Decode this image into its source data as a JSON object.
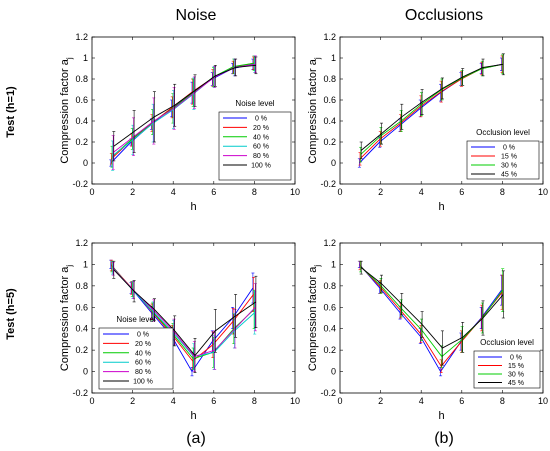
{
  "headers": {
    "col_a": "Noise",
    "col_b": "Occlusions",
    "row_1": "Test (h=1)",
    "row_2": "Test (h=5)",
    "sub_a": "(a)",
    "sub_b": "(b)"
  },
  "chart_data": [
    {
      "type": "line",
      "xlabel": "h",
      "ylabel": "Compression factor a",
      "ylabel_sub": "j",
      "xlim": [
        0,
        10
      ],
      "ylim": [
        -0.2,
        1.2
      ],
      "xticks": [
        0,
        2,
        4,
        6,
        8,
        10
      ],
      "yticks": [
        -0.2,
        0,
        0.2,
        0.4,
        0.6,
        0.8,
        1,
        1.2
      ],
      "legend_title": "Noise level",
      "legend_position": "lower-right",
      "x": [
        1,
        2,
        3,
        4,
        5,
        6,
        7,
        8
      ],
      "series": [
        {
          "name": "0 %",
          "color": "#0000ff",
          "values": [
            0.0,
            0.2,
            0.37,
            0.52,
            0.67,
            0.8,
            0.9,
            0.94
          ],
          "err": [
            0.03,
            0.03,
            0.05,
            0.08,
            0.1,
            0.06,
            0.05,
            0.05
          ]
        },
        {
          "name": "20 %",
          "color": "#ff0000",
          "values": [
            0.04,
            0.22,
            0.38,
            0.53,
            0.68,
            0.81,
            0.91,
            0.95
          ],
          "err": [
            0.05,
            0.06,
            0.08,
            0.1,
            0.12,
            0.08,
            0.06,
            0.06
          ]
        },
        {
          "name": "40 %",
          "color": "#00cc00",
          "values": [
            0.06,
            0.23,
            0.39,
            0.52,
            0.67,
            0.82,
            0.92,
            0.95
          ],
          "err": [
            0.1,
            0.1,
            0.12,
            0.14,
            0.13,
            0.09,
            0.07,
            0.07
          ]
        },
        {
          "name": "60 %",
          "color": "#00cccc",
          "values": [
            0.07,
            0.22,
            0.38,
            0.51,
            0.66,
            0.82,
            0.91,
            0.94
          ],
          "err": [
            0.14,
            0.14,
            0.18,
            0.18,
            0.15,
            0.1,
            0.08,
            0.08
          ]
        },
        {
          "name": "80 %",
          "color": "#cc00cc",
          "values": [
            0.1,
            0.25,
            0.4,
            0.52,
            0.67,
            0.82,
            0.91,
            0.94
          ],
          "err": [
            0.16,
            0.18,
            0.22,
            0.2,
            0.15,
            0.1,
            0.08,
            0.08
          ]
        },
        {
          "name": "100 %",
          "color": "#000000",
          "values": [
            0.16,
            0.3,
            0.44,
            0.55,
            0.69,
            0.83,
            0.91,
            0.93
          ],
          "err": [
            0.14,
            0.2,
            0.24,
            0.2,
            0.15,
            0.1,
            0.08,
            0.08
          ]
        }
      ]
    },
    {
      "type": "line",
      "xlabel": "h",
      "ylabel": "Compression factor a",
      "ylabel_sub": "j",
      "xlim": [
        0,
        10
      ],
      "ylim": [
        -0.2,
        1.2
      ],
      "xticks": [
        0,
        2,
        4,
        6,
        8,
        10
      ],
      "yticks": [
        -0.2,
        0,
        0.2,
        0.4,
        0.6,
        0.8,
        1,
        1.2
      ],
      "legend_title": "Occlusion level",
      "legend_position": "lower-right",
      "x": [
        1,
        2,
        3,
        4,
        5,
        6,
        7,
        8
      ],
      "series": [
        {
          "name": "0 %",
          "color": "#0000ff",
          "values": [
            0.0,
            0.2,
            0.36,
            0.52,
            0.67,
            0.8,
            0.9,
            0.94
          ],
          "err": [
            0.04,
            0.05,
            0.06,
            0.08,
            0.08,
            0.06,
            0.05,
            0.06
          ]
        },
        {
          "name": "15 %",
          "color": "#ff0000",
          "values": [
            0.04,
            0.23,
            0.38,
            0.54,
            0.68,
            0.8,
            0.9,
            0.94
          ],
          "err": [
            0.06,
            0.07,
            0.08,
            0.1,
            0.1,
            0.07,
            0.06,
            0.08
          ]
        },
        {
          "name": "30 %",
          "color": "#00cc00",
          "values": [
            0.08,
            0.26,
            0.4,
            0.56,
            0.7,
            0.81,
            0.9,
            0.94
          ],
          "err": [
            0.07,
            0.08,
            0.1,
            0.11,
            0.1,
            0.07,
            0.07,
            0.09
          ]
        },
        {
          "name": "45 %",
          "color": "#000000",
          "values": [
            0.12,
            0.28,
            0.44,
            0.58,
            0.71,
            0.82,
            0.91,
            0.94
          ],
          "err": [
            0.08,
            0.1,
            0.12,
            0.12,
            0.1,
            0.08,
            0.08,
            0.1
          ]
        }
      ]
    },
    {
      "type": "line",
      "xlabel": "h",
      "ylabel": "Compression factor a",
      "ylabel_sub": "j",
      "xlim": [
        0,
        10
      ],
      "ylim": [
        -0.2,
        1.2
      ],
      "xticks": [
        0,
        2,
        4,
        6,
        8,
        10
      ],
      "yticks": [
        -0.2,
        0,
        0.2,
        0.4,
        0.6,
        0.8,
        1,
        1.2
      ],
      "legend_title": "Noise level",
      "legend_position": "lower-left",
      "x": [
        1,
        2,
        3,
        4,
        5,
        6,
        7,
        8
      ],
      "series": [
        {
          "name": "0 %",
          "color": "#0000ff",
          "values": [
            1.0,
            0.78,
            0.55,
            0.33,
            0.0,
            0.28,
            0.5,
            0.78
          ],
          "err": [
            0.04,
            0.05,
            0.06,
            0.08,
            0.04,
            0.1,
            0.1,
            0.14
          ]
        },
        {
          "name": "20 %",
          "color": "#ff0000",
          "values": [
            0.99,
            0.78,
            0.56,
            0.34,
            0.1,
            0.25,
            0.47,
            0.72
          ],
          "err": [
            0.05,
            0.06,
            0.07,
            0.09,
            0.08,
            0.12,
            0.12,
            0.16
          ]
        },
        {
          "name": "40 %",
          "color": "#00cc00",
          "values": [
            0.98,
            0.77,
            0.56,
            0.35,
            0.12,
            0.18,
            0.4,
            0.58
          ],
          "err": [
            0.05,
            0.07,
            0.08,
            0.1,
            0.1,
            0.14,
            0.14,
            0.18
          ]
        },
        {
          "name": "60 %",
          "color": "#00cccc",
          "values": [
            0.97,
            0.76,
            0.56,
            0.36,
            0.14,
            0.18,
            0.38,
            0.55
          ],
          "err": [
            0.06,
            0.08,
            0.09,
            0.12,
            0.12,
            0.16,
            0.16,
            0.2
          ]
        },
        {
          "name": "80 %",
          "color": "#cc00cc",
          "values": [
            0.96,
            0.76,
            0.57,
            0.37,
            0.14,
            0.2,
            0.4,
            0.6
          ],
          "err": [
            0.06,
            0.08,
            0.1,
            0.12,
            0.14,
            0.18,
            0.18,
            0.22
          ]
        },
        {
          "name": "100 %",
          "color": "#000000",
          "values": [
            0.95,
            0.75,
            0.58,
            0.38,
            0.15,
            0.38,
            0.52,
            0.65
          ],
          "err": [
            0.08,
            0.1,
            0.1,
            0.14,
            0.16,
            0.2,
            0.2,
            0.24
          ]
        }
      ]
    },
    {
      "type": "line",
      "xlabel": "h",
      "ylabel": "Compression factor a",
      "ylabel_sub": "j",
      "xlim": [
        0,
        10
      ],
      "ylim": [
        -0.2,
        1.2
      ],
      "xticks": [
        0,
        2,
        4,
        6,
        8,
        10
      ],
      "yticks": [
        -0.2,
        0,
        0.2,
        0.4,
        0.6,
        0.8,
        1,
        1.2
      ],
      "legend_title": "Occlusion level",
      "legend_position": "lower-right",
      "x": [
        1,
        2,
        3,
        4,
        5,
        6,
        7,
        8
      ],
      "series": [
        {
          "name": "0 %",
          "color": "#0000ff",
          "values": [
            1.0,
            0.78,
            0.55,
            0.33,
            0.0,
            0.28,
            0.5,
            0.76
          ],
          "err": [
            0.03,
            0.05,
            0.06,
            0.07,
            0.04,
            0.08,
            0.1,
            0.14
          ]
        },
        {
          "name": "15 %",
          "color": "#ff0000",
          "values": [
            0.99,
            0.79,
            0.57,
            0.35,
            0.05,
            0.28,
            0.5,
            0.74
          ],
          "err": [
            0.04,
            0.06,
            0.07,
            0.08,
            0.06,
            0.1,
            0.12,
            0.16
          ]
        },
        {
          "name": "30 %",
          "color": "#00cc00",
          "values": [
            0.98,
            0.8,
            0.59,
            0.39,
            0.14,
            0.3,
            0.5,
            0.76
          ],
          "err": [
            0.05,
            0.07,
            0.08,
            0.1,
            0.1,
            0.12,
            0.14,
            0.2
          ]
        },
        {
          "name": "45 %",
          "color": "#000000",
          "values": [
            0.97,
            0.82,
            0.63,
            0.44,
            0.22,
            0.32,
            0.5,
            0.72
          ],
          "err": [
            0.06,
            0.08,
            0.1,
            0.12,
            0.16,
            0.14,
            0.16,
            0.22
          ]
        }
      ]
    }
  ]
}
